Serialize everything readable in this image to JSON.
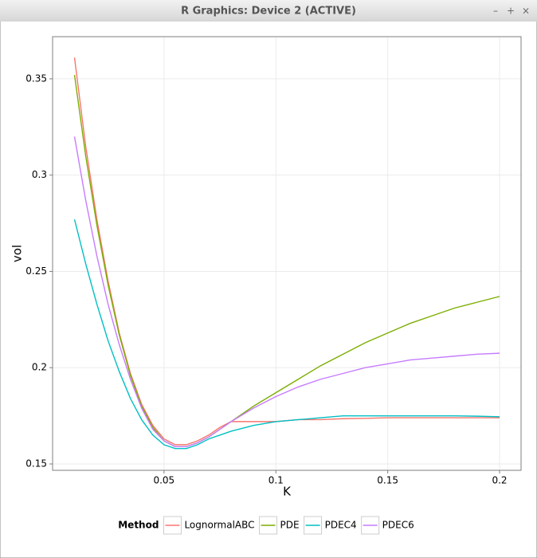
{
  "window": {
    "title": "R Graphics: Device 2 (ACTIVE)",
    "controls": [
      "–",
      "+",
      "×"
    ]
  },
  "chart_data": {
    "type": "line",
    "x_label": "K",
    "y_label": "vol",
    "x": [
      0.01,
      0.015,
      0.02,
      0.025,
      0.03,
      0.035,
      0.04,
      0.045,
      0.05,
      0.055,
      0.06,
      0.065,
      0.07,
      0.075,
      0.08,
      0.09,
      0.1,
      0.11,
      0.12,
      0.13,
      0.14,
      0.15,
      0.16,
      0.17,
      0.18,
      0.19,
      0.2
    ],
    "series": [
      {
        "name": "LognormalABC",
        "color": "#F8766D",
        "values": [
          0.361,
          0.315,
          0.277,
          0.245,
          0.218,
          0.197,
          0.181,
          0.17,
          0.163,
          0.16,
          0.16,
          0.162,
          0.165,
          0.169,
          0.172,
          0.172,
          0.172,
          0.173,
          0.173,
          0.1735,
          0.1737,
          0.174,
          0.174,
          0.174,
          0.174,
          0.174,
          0.174
        ]
      },
      {
        "name": "PDE",
        "color": "#7CAE00",
        "values": [
          0.352,
          0.31,
          0.274,
          0.243,
          0.217,
          0.196,
          0.18,
          0.169,
          0.162,
          0.159,
          0.159,
          0.161,
          0.164,
          0.168,
          0.172,
          0.18,
          0.187,
          0.194,
          0.201,
          0.207,
          0.213,
          0.218,
          0.223,
          0.227,
          0.231,
          0.234,
          0.237
        ]
      },
      {
        "name": "PDEC4",
        "color": "#00BFC4",
        "values": [
          0.277,
          0.254,
          0.233,
          0.214,
          0.198,
          0.184,
          0.173,
          0.165,
          0.16,
          0.158,
          0.158,
          0.16,
          0.163,
          0.165,
          0.167,
          0.17,
          0.172,
          0.173,
          0.174,
          0.175,
          0.175,
          0.175,
          0.175,
          0.175,
          0.175,
          0.1748,
          0.1745
        ]
      },
      {
        "name": "PDEC6",
        "color": "#C77CFF",
        "values": [
          0.32,
          0.287,
          0.258,
          0.233,
          0.212,
          0.194,
          0.179,
          0.168,
          0.162,
          0.159,
          0.159,
          0.161,
          0.164,
          0.168,
          0.172,
          0.179,
          0.185,
          0.19,
          0.194,
          0.197,
          0.2,
          0.202,
          0.204,
          0.205,
          0.206,
          0.207,
          0.2075
        ]
      }
    ],
    "xlim": [
      0.0002,
      0.2096
    ],
    "ylim": [
      0.1467,
      0.3719
    ],
    "xticks": [
      0.05,
      0.1,
      0.15,
      0.2
    ],
    "yticks": [
      0.15,
      0.2,
      0.25,
      0.3,
      0.35
    ],
    "grid": true,
    "legend_title": "Method",
    "legend_position": "bottom"
  }
}
